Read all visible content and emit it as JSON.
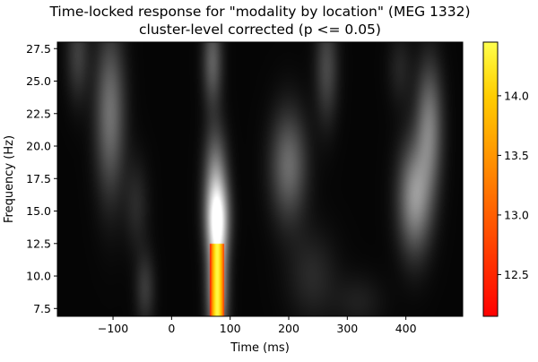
{
  "chart_data": {
    "type": "heatmap",
    "title": "Time-locked response for \"modality by location\" (MEG 1332)",
    "subtitle": "cluster-level corrected (p <= 0.05)",
    "xlabel": "Time (ms)",
    "ylabel": "Frequency (Hz)",
    "xlim": [
      -195,
      497
    ],
    "ylim": [
      6.9,
      28.0
    ],
    "x_ticks": [
      -100,
      0,
      100,
      200,
      300,
      400
    ],
    "x_tick_labels": [
      "−100",
      "0",
      "100",
      "200",
      "300",
      "400"
    ],
    "y_ticks": [
      7.5,
      10.0,
      12.5,
      15.0,
      17.5,
      20.0,
      22.5,
      25.0,
      27.5
    ],
    "y_tick_labels": [
      "7.5",
      "10.0",
      "12.5",
      "15.0",
      "17.5",
      "20.0",
      "22.5",
      "25.0",
      "27.5"
    ],
    "background_colormap": "gray",
    "cluster_colormap": "hot",
    "colorbar": {
      "range": [
        12.15,
        14.45
      ],
      "ticks": [
        12.5,
        13.0,
        13.5,
        14.0
      ],
      "tick_labels": [
        "12.5",
        "13.0",
        "13.5",
        "14.0"
      ]
    },
    "grid": false,
    "background_blobs": [
      {
        "t": -160,
        "f": 27.0,
        "st": 14,
        "sf": 2.5,
        "v": 0.22
      },
      {
        "t": -105,
        "f": 22.5,
        "st": 18,
        "sf": 4.5,
        "v": 0.42
      },
      {
        "t": -45,
        "f": 9.0,
        "st": 12,
        "sf": 2.0,
        "v": 0.2
      },
      {
        "t": -60,
        "f": 15.5,
        "st": 15,
        "sf": 2.5,
        "v": 0.14
      },
      {
        "t": 70,
        "f": 26.5,
        "st": 12,
        "sf": 2.5,
        "v": 0.35
      },
      {
        "t": 75,
        "f": 18.0,
        "st": 14,
        "sf": 2.5,
        "v": 0.42
      },
      {
        "t": 78,
        "f": 14.5,
        "st": 14,
        "sf": 2.0,
        "v": 0.72
      },
      {
        "t": 78,
        "f": 9.5,
        "st": 12,
        "sf": 3.5,
        "v": 0.8
      },
      {
        "t": 200,
        "f": 18.5,
        "st": 22,
        "sf": 3.0,
        "v": 0.4
      },
      {
        "t": 240,
        "f": 10.0,
        "st": 30,
        "sf": 2.5,
        "v": 0.14
      },
      {
        "t": 265,
        "f": 26.0,
        "st": 14,
        "sf": 3.0,
        "v": 0.26
      },
      {
        "t": 320,
        "f": 8.0,
        "st": 30,
        "sf": 1.5,
        "v": 0.1
      },
      {
        "t": 415,
        "f": 16.0,
        "st": 20,
        "sf": 3.0,
        "v": 0.55
      },
      {
        "t": 440,
        "f": 21.5,
        "st": 16,
        "sf": 3.5,
        "v": 0.45
      },
      {
        "t": 390,
        "f": 26.0,
        "st": 15,
        "sf": 2.0,
        "v": 0.12
      }
    ],
    "cluster": {
      "t_range": [
        65,
        90
      ],
      "f_range": [
        6.9,
        12.5
      ],
      "t_peak": 78,
      "value_peak": 14.4
    }
  }
}
